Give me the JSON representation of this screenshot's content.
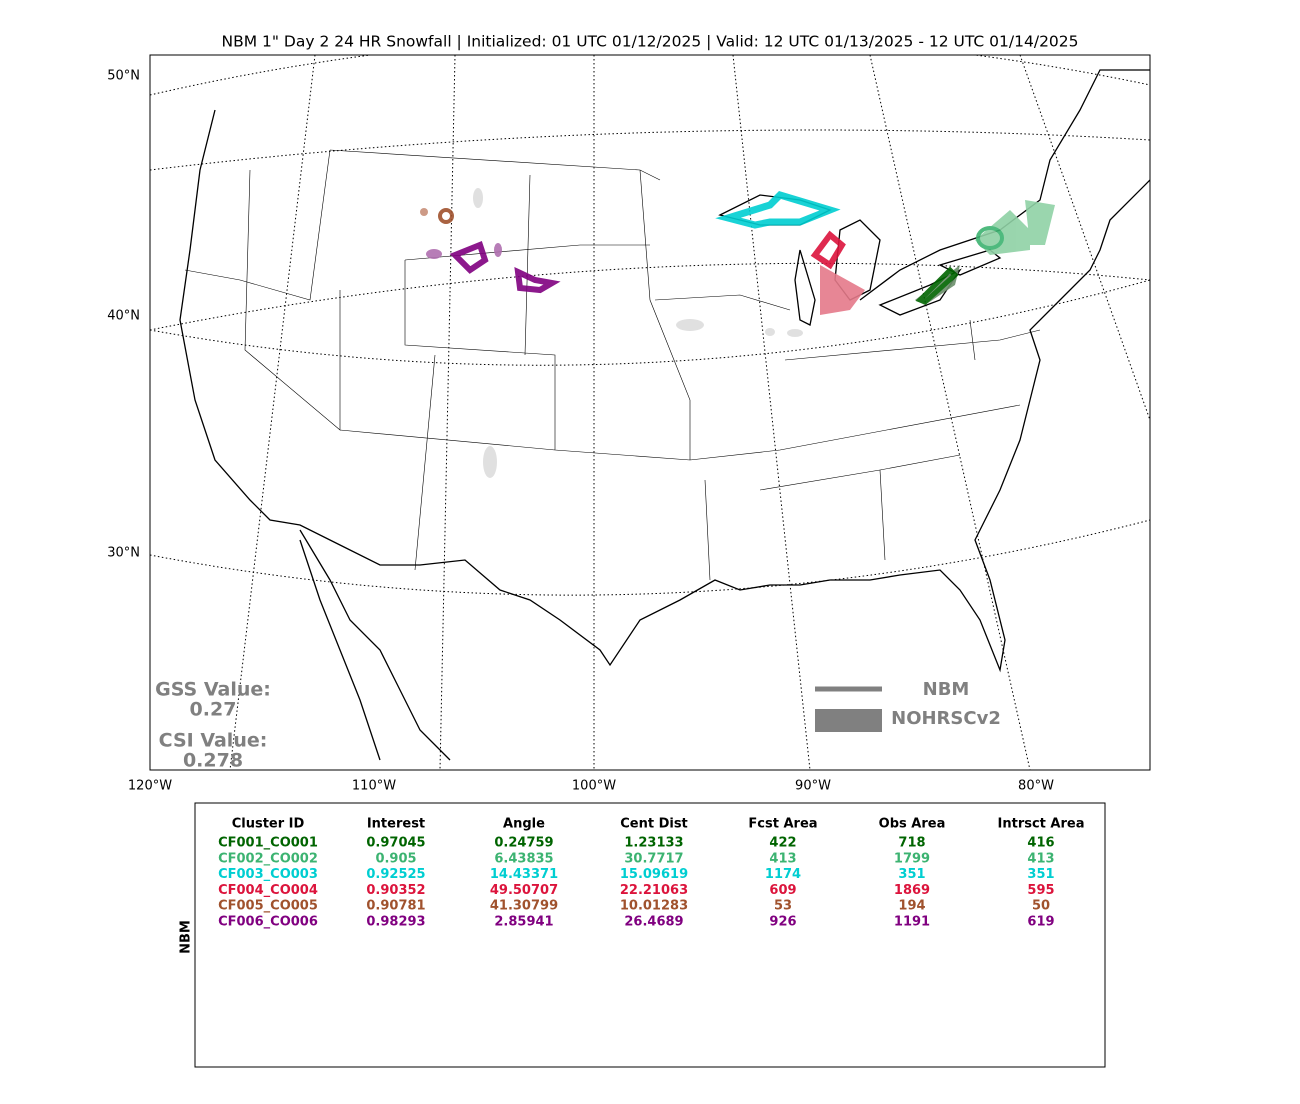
{
  "title": "NBM 1\" Day 2 24 HR Snowfall | Initialized: 01 UTC 01/12/2025 | Valid: 12 UTC 01/13/2025 - 12 UTC 01/14/2025",
  "map": {
    "lat_labels": [
      "50°N",
      "40°N",
      "30°N"
    ],
    "lon_labels": [
      "120°W",
      "110°W",
      "100°W",
      "90°W",
      "80°W"
    ],
    "scores": {
      "gss_label": "GSS Value:",
      "gss": "0.27",
      "csi_label": "CSI Value:",
      "csi": "0.278"
    },
    "legend": [
      "NBM",
      "NOHRSCv2"
    ]
  },
  "table": {
    "side_label": "NBM",
    "header": [
      "Cluster ID",
      "Interest",
      "Angle",
      "Cent Dist",
      "Fcst Area",
      "Obs Area",
      "Intrsct Area"
    ],
    "rows": [
      [
        "CF001_CO001",
        "0.97045",
        "0.24759",
        "1.23133",
        "422",
        "718",
        "416"
      ],
      [
        "CF002_CO002",
        "0.905",
        "6.43835",
        "30.7717",
        "413",
        "1799",
        "413"
      ],
      [
        "CF003_CO003",
        "0.92525",
        "14.43371",
        "15.09619",
        "1174",
        "351",
        "351"
      ],
      [
        "CF004_CO004",
        "0.90352",
        "49.50707",
        "22.21063",
        "609",
        "1869",
        "595"
      ],
      [
        "CF005_CO005",
        "0.90781",
        "41.30799",
        "10.01283",
        "53",
        "194",
        "50"
      ],
      [
        "CF006_CO006",
        "0.98293",
        "2.85941",
        "26.4689",
        "926",
        "1191",
        "619"
      ]
    ],
    "row_colors": [
      "#006400",
      "#3cb371",
      "#00ced1",
      "#dc143c",
      "#a0522d",
      "#800080"
    ]
  }
}
